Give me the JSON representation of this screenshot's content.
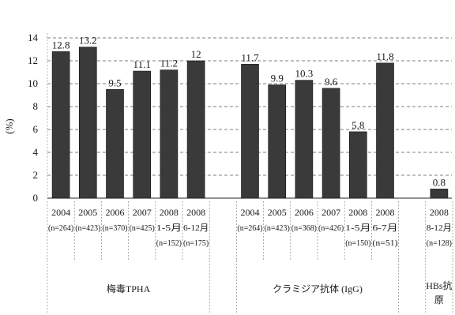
{
  "chart_data": {
    "type": "bar",
    "ylabel": "(%)",
    "ylim": [
      0,
      14
    ],
    "yticks": [
      0,
      2,
      4,
      6,
      8,
      10,
      12,
      14
    ],
    "grid": true,
    "bar_color": "#3a3a3a",
    "groups": [
      {
        "name": "梅毒TPHA",
        "categories": [
          {
            "year": "2004",
            "period": "",
            "n": "(n=264)",
            "value": 12.8,
            "label": "12.8"
          },
          {
            "year": "2005",
            "period": "",
            "n": "(n=423)",
            "value": 13.2,
            "label": "13.2"
          },
          {
            "year": "2006",
            "period": "",
            "n": "(n=370)",
            "value": 9.5,
            "label": "9.5"
          },
          {
            "year": "2007",
            "period": "",
            "n": "(n=425)",
            "value": 11.1,
            "label": "11.1"
          },
          {
            "year": "2008",
            "period": "1-5月",
            "n": "(n=152)",
            "value": 11.2,
            "label": "11.2"
          },
          {
            "year": "2008",
            "period": "6-12月",
            "n": "(n=175)",
            "value": 12,
            "label": "12"
          }
        ]
      },
      {
        "name": "クラミジア抗体 (IgG)",
        "categories": [
          {
            "year": "2004",
            "period": "",
            "n": "(n=264)",
            "value": 11.7,
            "label": "11.7"
          },
          {
            "year": "2005",
            "period": "",
            "n": "(n=423)",
            "value": 9.9,
            "label": "9.9"
          },
          {
            "year": "2006",
            "period": "",
            "n": "(n=368)",
            "value": 10.3,
            "label": "10.3"
          },
          {
            "year": "2007",
            "period": "",
            "n": "(n=426)",
            "value": 9.6,
            "label": "9.6"
          },
          {
            "year": "2008",
            "period": "1-5月",
            "n": "(n=150)",
            "value": 5.8,
            "label": "5.8"
          },
          {
            "year": "2008",
            "period": "6-7月",
            "n": "(n=51)",
            "value": 11.8,
            "label": "11.8"
          }
        ]
      },
      {
        "name": "HBs抗原",
        "categories": [
          {
            "year": "2008",
            "period": "8-12月",
            "n": "(n=128)",
            "value": 0.8,
            "label": "0.8"
          }
        ]
      }
    ]
  }
}
